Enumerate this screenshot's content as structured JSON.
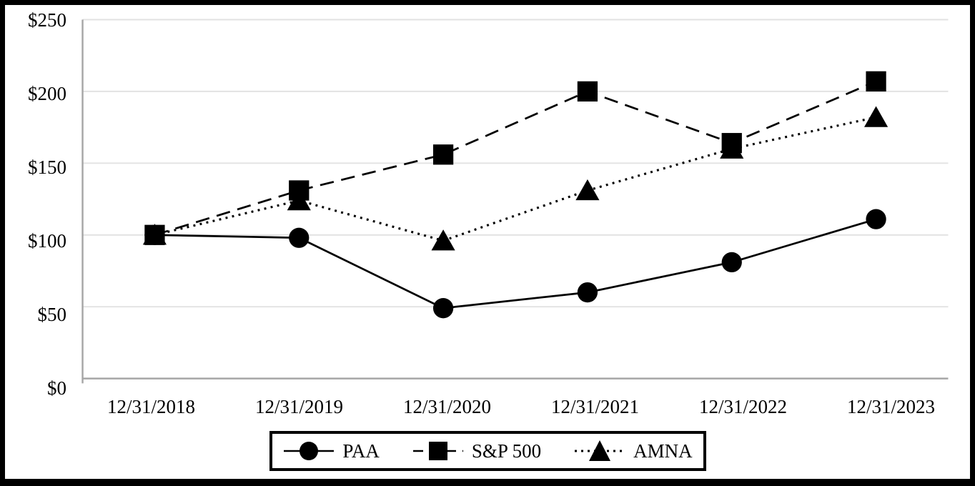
{
  "chart_data": {
    "type": "line",
    "title": "",
    "xlabel": "",
    "ylabel": "",
    "categories": [
      "12/31/2018",
      "12/31/2019",
      "12/31/2020",
      "12/31/2021",
      "12/31/2022",
      "12/31/2023"
    ],
    "series": [
      {
        "name": "PAA",
        "marker": "circle",
        "line_style": "solid",
        "color": "#000000",
        "values": [
          100,
          98,
          49,
          60,
          81,
          111
        ]
      },
      {
        "name": "S&P 500",
        "marker": "square",
        "line_style": "dashed",
        "color": "#000000",
        "values": [
          100,
          131,
          156,
          200,
          164,
          207
        ]
      },
      {
        "name": "AMNA",
        "marker": "triangle",
        "line_style": "dotted",
        "color": "#000000",
        "values": [
          100,
          124,
          96,
          131,
          160,
          182
        ]
      }
    ],
    "y_axis": {
      "ticks": [
        "$0",
        "$50",
        "$100",
        "$150",
        "$200",
        "$250"
      ],
      "tick_values": [
        0,
        50,
        100,
        150,
        200,
        250
      ],
      "min": 0,
      "max": 250
    },
    "ylim": [
      0,
      250
    ],
    "grid": true,
    "legend_position": "bottom",
    "colors": {
      "series": "#000000",
      "axis": "#a6a6a6",
      "gridline": "#e2e2e2",
      "background": "#ffffff",
      "frame_border": "#000000"
    }
  }
}
